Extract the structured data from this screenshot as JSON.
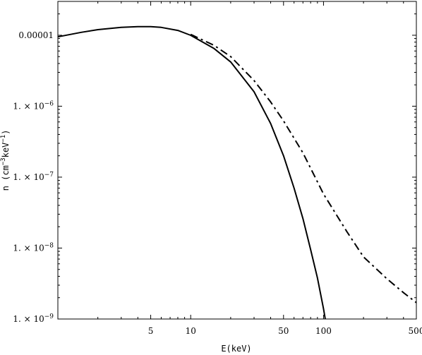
{
  "chart_data": {
    "type": "line",
    "title": "",
    "xlabel": "E(keV)",
    "ylabel": "n  (cm^-3 keV^-1)",
    "ylabel_parts": {
      "base1": "n  (cm",
      "exp1": "−3",
      "base2": "keV",
      "exp2": "−1",
      "close": ")"
    },
    "xscale": "log",
    "yscale": "log",
    "xlim": [
      1,
      500
    ],
    "ylim": [
      1e-09,
      3e-05
    ],
    "grid": false,
    "x_ticks": [
      {
        "value": 5,
        "label": "5"
      },
      {
        "value": 10,
        "label": "10"
      },
      {
        "value": 50,
        "label": "50"
      },
      {
        "value": 100,
        "label": "100"
      },
      {
        "value": 500,
        "label": "500"
      }
    ],
    "x_minor_ticks": [
      2,
      3,
      4,
      6,
      7,
      8,
      9,
      20,
      30,
      40,
      60,
      70,
      80,
      90,
      200,
      300,
      400
    ],
    "y_ticks": [
      {
        "value": 1e-05,
        "label": "0.00001",
        "mant": "",
        "exp": ""
      },
      {
        "value": 1e-06,
        "label": "1.×10^-6",
        "mant": "1. × 10",
        "exp": "−6"
      },
      {
        "value": 1e-07,
        "label": "1.×10^-7",
        "mant": "1. × 10",
        "exp": "−7"
      },
      {
        "value": 1e-08,
        "label": "1.×10^-8",
        "mant": "1. × 10",
        "exp": "−8"
      },
      {
        "value": 1e-09,
        "label": "1.×10^-9",
        "mant": "1. × 10",
        "exp": "−9"
      }
    ],
    "series": [
      {
        "style": "solid",
        "color": "#000000",
        "x": [
          1,
          1.5,
          2,
          3,
          4,
          5,
          6,
          8,
          10,
          15,
          20,
          30,
          40,
          50,
          60,
          70,
          80,
          90,
          100,
          103
        ],
        "y": [
          9.5e-06,
          1.1e-05,
          1.2e-05,
          1.29e-05,
          1.32e-05,
          1.32e-05,
          1.29e-05,
          1.17e-05,
          1e-05,
          6.5e-06,
          4.2e-06,
          1.6e-06,
          5.7e-07,
          2e-07,
          7e-08,
          2.6e-08,
          9.5e-09,
          3.8e-09,
          1.4e-09,
          1e-09
        ]
      },
      {
        "style": "dashdot",
        "color": "#000000",
        "x": [
          10,
          15,
          20,
          30,
          40,
          50,
          70,
          100,
          150,
          200,
          300,
          400,
          500
        ],
        "y": [
          1.03e-05,
          7.2e-06,
          5e-06,
          2.3e-06,
          1.15e-06,
          6.2e-07,
          2.2e-07,
          5.8e-08,
          1.7e-08,
          7.5e-09,
          3.7e-09,
          2.35e-09,
          1.7e-09
        ]
      }
    ]
  }
}
